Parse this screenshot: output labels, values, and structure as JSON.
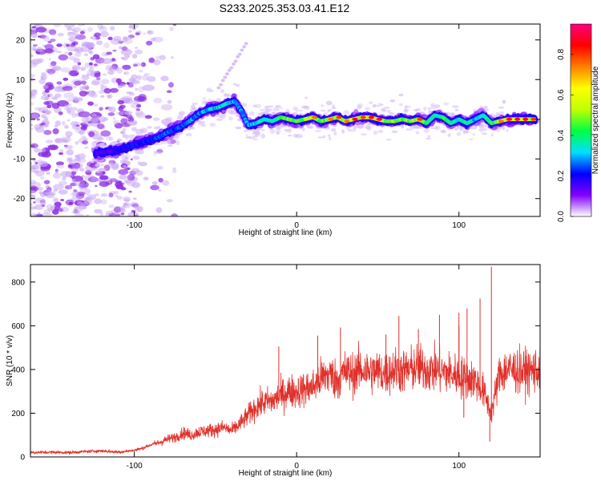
{
  "title": "S233.2025.353.03.41.E12",
  "chart_data": [
    {
      "type": "heatmap",
      "xlabel": "Height of straight line (km)",
      "ylabel": "Frequency (Hz)",
      "xlim": [
        -164,
        150
      ],
      "ylim": [
        -24.5,
        24
      ],
      "xticks": [
        -100,
        0,
        100
      ],
      "yticks": [
        -20,
        -10,
        0,
        10,
        20
      ],
      "colorbar": {
        "label": "Normalized spectral amplitude",
        "range": [
          0.0,
          0.95
        ],
        "ticks": [
          0.0,
          0.2,
          0.4,
          0.6,
          0.8
        ],
        "tick_labels": [
          "0.0",
          "0.2",
          "0.4",
          "0.6",
          "0.8"
        ],
        "colors": [
          "#ffffff",
          "#8000ff",
          "#0000ff",
          "#00e0ff",
          "#00ff40",
          "#c0ff00",
          "#ffff00",
          "#ff8000",
          "#ff0000",
          "#ff0080"
        ]
      },
      "ridge": {
        "x": [
          -122,
          -110,
          -100,
          -92,
          -85,
          -78,
          -72,
          -66,
          -60,
          -54,
          -48,
          -43,
          -38,
          -34,
          -30,
          -25,
          -20,
          -15,
          -10,
          -5,
          0,
          5,
          10,
          15,
          20,
          25,
          30,
          35,
          40,
          45,
          50,
          55,
          60,
          65,
          70,
          75,
          80,
          85,
          90,
          95,
          100,
          105,
          110,
          115,
          120,
          125,
          130,
          135,
          140,
          145
        ],
        "y": [
          -8.5,
          -7.8,
          -6.5,
          -5.5,
          -4.5,
          -3.0,
          -2.0,
          -0.5,
          1.5,
          2.5,
          3.0,
          4.0,
          4.5,
          2.0,
          -1.5,
          -1.0,
          0.0,
          -0.5,
          0.5,
          0.0,
          -0.5,
          0.0,
          0.5,
          -0.5,
          0.0,
          0.5,
          -0.5,
          0.0,
          0.5,
          0.5,
          0.0,
          -0.5,
          -0.5,
          0.0,
          -0.5,
          0.0,
          -1.0,
          1.0,
          0.5,
          -1.0,
          0.0,
          -1.0,
          0.0,
          1.0,
          -1.0,
          -0.5,
          0.0,
          0.0,
          0.0,
          0.0
        ],
        "amplitude": [
          0.2,
          0.25,
          0.3,
          0.3,
          0.35,
          0.35,
          0.35,
          0.4,
          0.4,
          0.45,
          0.45,
          0.5,
          0.4,
          0.4,
          0.4,
          0.45,
          0.5,
          0.55,
          0.6,
          0.65,
          0.7,
          0.7,
          0.75,
          0.7,
          0.75,
          0.8,
          0.75,
          0.85,
          0.8,
          0.85,
          0.9,
          0.6,
          0.7,
          0.65,
          0.7,
          0.8,
          0.6,
          0.5,
          0.6,
          0.55,
          0.5,
          0.55,
          0.45,
          0.5,
          0.6,
          0.75,
          0.9,
          0.9,
          0.85,
          0.8
        ]
      },
      "noise_region_xlim": [
        -164,
        -95
      ]
    },
    {
      "type": "line",
      "xlabel": "Height of straight line (km)",
      "ylabel": "SNR (10 * v/v)",
      "xlim": [
        -164,
        150
      ],
      "ylim": [
        0,
        880
      ],
      "xticks": [
        -100,
        0,
        100
      ],
      "yticks": [
        0,
        200,
        400,
        600,
        800
      ],
      "color": "#e0302a",
      "x": [
        -164,
        -150,
        -140,
        -130,
        -120,
        -110,
        -100,
        -95,
        -90,
        -85,
        -80,
        -75,
        -70,
        -65,
        -60,
        -55,
        -50,
        -45,
        -40,
        -35,
        -30,
        -25,
        -20,
        -15,
        -10,
        -5,
        0,
        5,
        10,
        15,
        20,
        25,
        30,
        35,
        40,
        45,
        50,
        55,
        60,
        65,
        70,
        75,
        80,
        85,
        90,
        95,
        100,
        105,
        110,
        115,
        120,
        125,
        130,
        135,
        140,
        145,
        150
      ],
      "y": [
        20,
        22,
        20,
        25,
        28,
        22,
        30,
        40,
        55,
        65,
        80,
        90,
        110,
        100,
        115,
        120,
        125,
        135,
        120,
        150,
        190,
        230,
        250,
        255,
        280,
        300,
        300,
        310,
        320,
        360,
        380,
        350,
        390,
        380,
        400,
        390,
        390,
        380,
        400,
        390,
        400,
        410,
        400,
        400,
        390,
        380,
        370,
        360,
        350,
        300,
        200,
        380,
        400,
        395,
        390,
        395,
        400
      ],
      "spikes": [
        {
          "x": 120,
          "y": 870
        },
        {
          "x": 113,
          "y": 725
        },
        {
          "x": 105,
          "y": 680
        },
        {
          "x": 100,
          "y": 660
        },
        {
          "x": 88,
          "y": 650
        },
        {
          "x": 63,
          "y": 645
        },
        {
          "x": 100,
          "y": 600
        },
        {
          "x": 27,
          "y": 592
        },
        {
          "x": 75,
          "y": 585
        },
        {
          "x": 55,
          "y": 560
        },
        {
          "x": 13,
          "y": 555
        },
        {
          "x": -11,
          "y": 505
        },
        {
          "x": 119,
          "y": 70
        },
        {
          "x": 103,
          "y": 180
        }
      ]
    }
  ]
}
